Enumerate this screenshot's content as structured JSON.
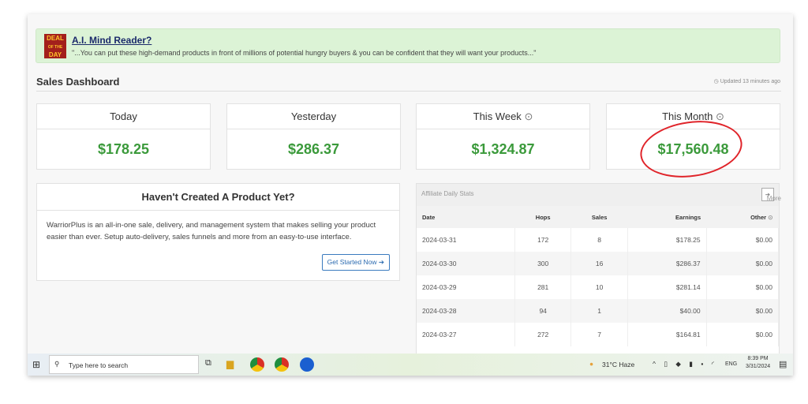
{
  "banner": {
    "badge": "DEAL OF THE DAY",
    "title": "A.I. Mind Reader?",
    "text": "\"...You can put these high-demand products in front of millions of potential hungry buyers & you can be confident that they will want your products...\""
  },
  "dashboard": {
    "title": "Sales Dashboard",
    "updated": "Updated 13 minutes ago"
  },
  "cards": [
    {
      "label": "Today",
      "value": "$178.25"
    },
    {
      "label": "Yesterday",
      "value": "$286.37"
    },
    {
      "label": "This Week",
      "value": "$1,324.87"
    },
    {
      "label": "This Month",
      "value": "$17,560.48"
    }
  ],
  "promo": {
    "title": "Haven't Created A Product Yet?",
    "text": "WarriorPlus is an all-in-one sale, delivery, and management system that makes selling your product easier than ever. Setup auto-delivery, sales funnels and more from an easy-to-use interface.",
    "button": "Get Started Now"
  },
  "stats": {
    "title": "Affiliate Daily Stats",
    "more": "More",
    "headers": [
      "Date",
      "Hops",
      "Sales",
      "Earnings",
      "Other"
    ],
    "rows": [
      [
        "2024-03-31",
        "172",
        "8",
        "$178.25",
        "$0.00"
      ],
      [
        "2024-03-30",
        "300",
        "16",
        "$286.37",
        "$0.00"
      ],
      [
        "2024-03-29",
        "281",
        "10",
        "$281.14",
        "$0.00"
      ],
      [
        "2024-03-28",
        "94",
        "1",
        "$40.00",
        "$0.00"
      ],
      [
        "2024-03-27",
        "272",
        "7",
        "$164.81",
        "$0.00"
      ]
    ]
  },
  "taskbar": {
    "search": "Type here to search",
    "weather": "31°C  Haze",
    "lang": "ENG",
    "time": "8:39 PM",
    "date": "3/31/2024"
  }
}
